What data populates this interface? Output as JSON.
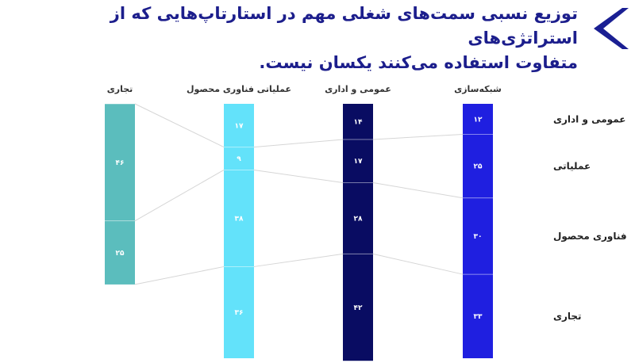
{
  "title": {
    "line1": "توزیع نسبی سمت‌های شغلی مهم در استارتاپ‌هایی که از استراتژی‌های",
    "line2": "متفاوت استفاده می‌کنند یکسان نیست."
  },
  "icon": "chevron-left-icon",
  "colors": {
    "title": "#1c1e8c",
    "arrow": "#1a1f93",
    "series": [
      "#1f1fe0",
      "#090c62",
      "#63e2fa",
      "#5bbdbd"
    ],
    "connector": "#d6d6d6"
  },
  "chart_data": {
    "type": "stacked-bar",
    "categories": [
      "شبکه‌سازی",
      "عمومی و اداری",
      "عملیاتی فناوری محصول",
      "تجاری"
    ],
    "segments": [
      "عمومی و اداری",
      "عملیاتی",
      "فناوری محصول",
      "تجاری"
    ],
    "values": [
      [
        12,
        25,
        30,
        33
      ],
      [
        14,
        17,
        28,
        42
      ],
      [
        17,
        9,
        38,
        36
      ],
      [
        0,
        46,
        25,
        0
      ]
    ],
    "value_labels": [
      [
        "۱۲",
        "۲۵",
        "۳۰",
        "۳۳"
      ],
      [
        "۱۴",
        "۱۷",
        "۲۸",
        "۴۲"
      ],
      [
        "۱۷",
        "۹",
        "۳۸",
        "۳۶"
      ],
      [
        "",
        "۴۶",
        "۲۵",
        ""
      ]
    ],
    "ylim": [
      0,
      100
    ]
  }
}
